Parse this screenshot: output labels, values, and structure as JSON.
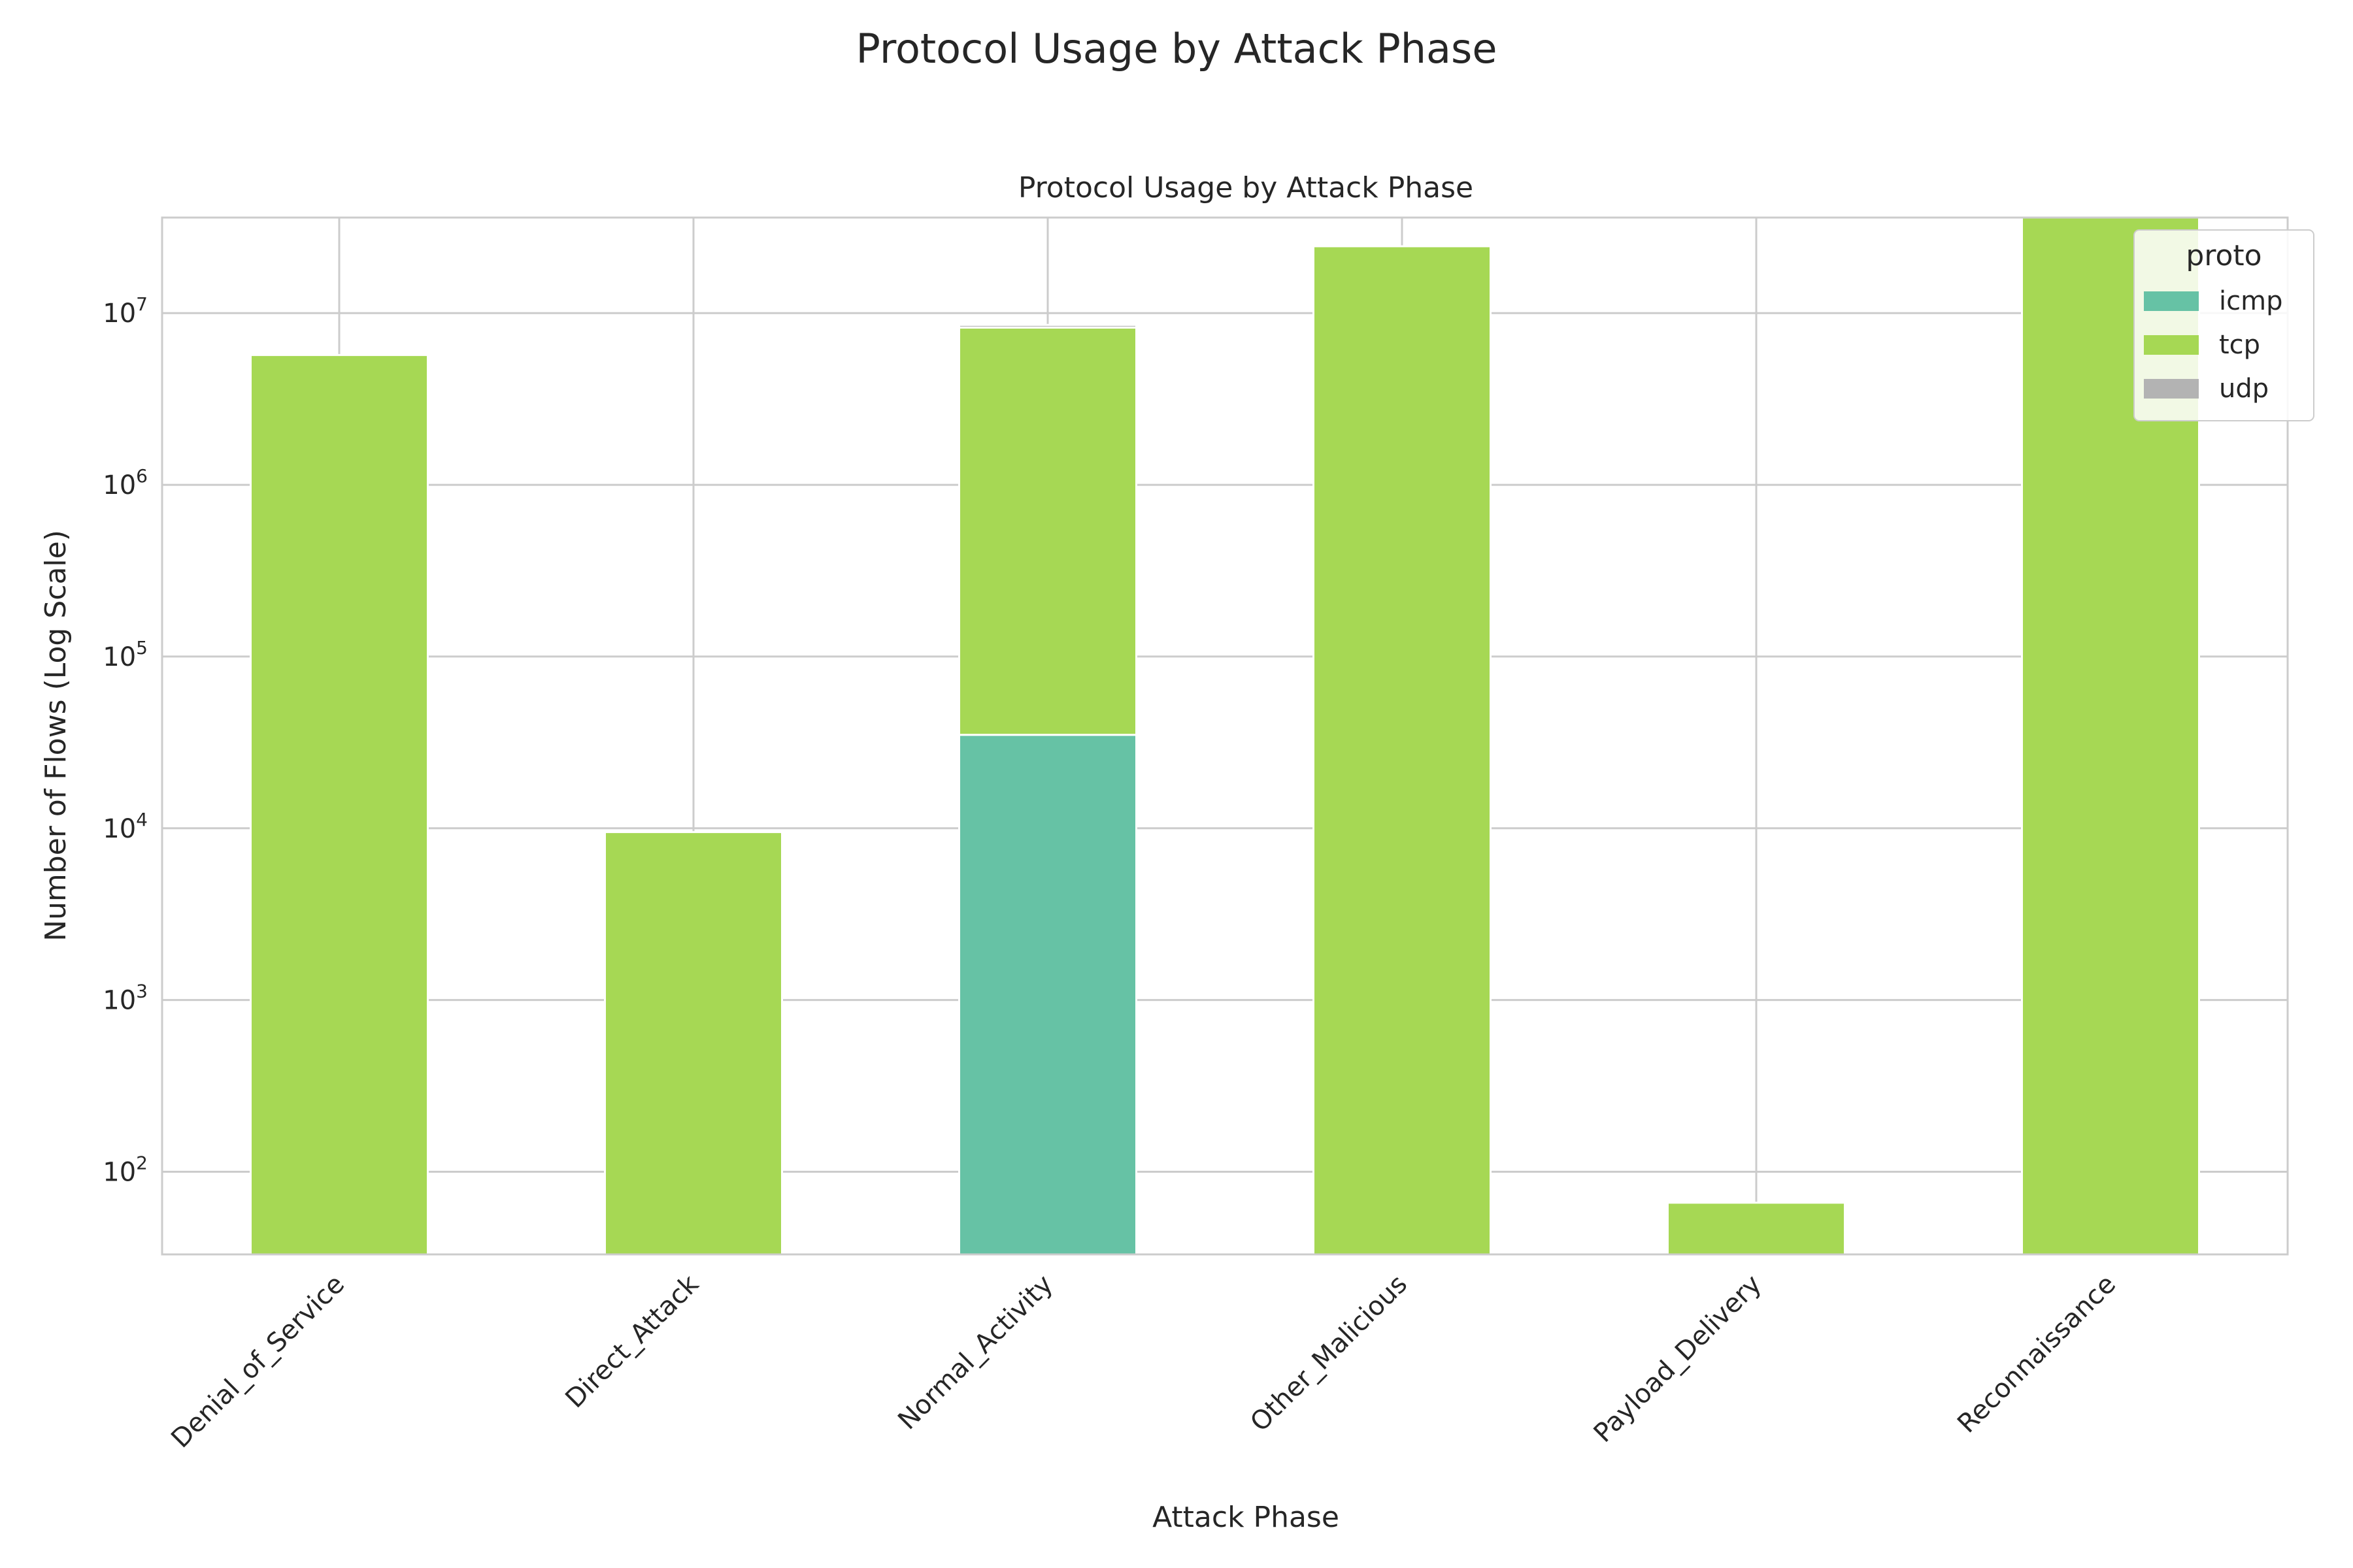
{
  "figure_title": "Protocol Usage by Attack Phase",
  "chart_data": {
    "type": "bar",
    "stacked": true,
    "title": "Protocol Usage by Attack Phase",
    "xlabel": "Attack Phase",
    "ylabel": "Number of Flows (Log Scale)",
    "yscale": "log",
    "ylim": [
      33,
      36000000
    ],
    "grid": true,
    "categories": [
      "Denial_of_Service",
      "Direct_Attack",
      "Normal_Activity",
      "Other_Malicious",
      "Payload_Delivery",
      "Reconnaissance"
    ],
    "series": [
      {
        "name": "icmp",
        "color": "#66c2a5",
        "values": [
          0,
          0,
          35000,
          0,
          0,
          0
        ]
      },
      {
        "name": "tcp",
        "color": "#a6d854",
        "values": [
          5700000,
          9500,
          8200000,
          24500000,
          66,
          36000000
        ]
      },
      {
        "name": "udp",
        "color": "#b3b3b3",
        "values": [
          0,
          0,
          300000,
          0,
          0,
          0
        ]
      }
    ],
    "yticks": [
      {
        "value": 100,
        "base": "10",
        "exp": "2"
      },
      {
        "value": 1000,
        "base": "10",
        "exp": "3"
      },
      {
        "value": 10000,
        "base": "10",
        "exp": "4"
      },
      {
        "value": 100000,
        "base": "10",
        "exp": "5"
      },
      {
        "value": 1000000,
        "base": "10",
        "exp": "6"
      },
      {
        "value": 10000000,
        "base": "10",
        "exp": "7"
      }
    ],
    "legend": {
      "title": "proto",
      "position": "top-right"
    }
  }
}
